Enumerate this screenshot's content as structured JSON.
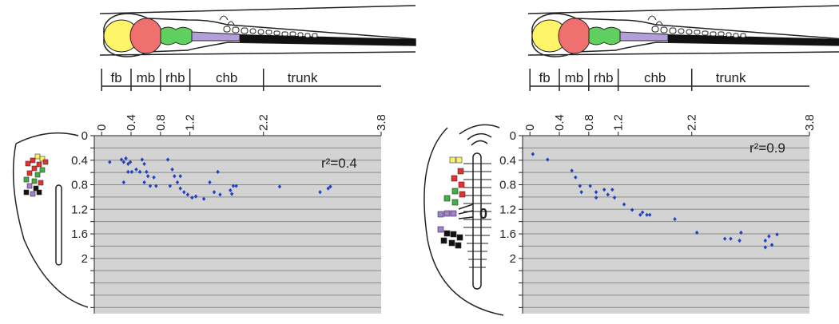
{
  "chart_data": [
    {
      "type": "scatter",
      "annotation": "r²=0.4",
      "color": "#1f3fbf",
      "regions": [
        "fb",
        "mb",
        "rhb",
        "chb",
        "trunk"
      ],
      "xlim": [
        -0.1,
        3.8
      ],
      "xticks": [
        0,
        0.4,
        0.8,
        1.2,
        2.2,
        3.8
      ],
      "ylim": [
        0,
        2.9
      ],
      "yticks": [
        0,
        0.4,
        0.8,
        1.2,
        1.6,
        2.0
      ],
      "minor_yticks": [
        0.2,
        0.6,
        1.0,
        1.4,
        1.8,
        2.2,
        2.4,
        2.6,
        2.8
      ],
      "y_inverted": true,
      "grid": true,
      "x": [
        0.11,
        0.27,
        0.3,
        0.33,
        0.36,
        0.39,
        0.3,
        0.36,
        0.41,
        0.47,
        0.52,
        0.55,
        0.58,
        0.61,
        0.58,
        0.66,
        0.71,
        0.74,
        0.63,
        0.9,
        0.96,
        0.99,
        1.03,
        0.93,
        1.07,
        1.12,
        1.17,
        1.23,
        1.28,
        1.07,
        1.39,
        1.47,
        1.53,
        1.58,
        1.61,
        1.75,
        1.79,
        1.83,
        1.77,
        2.42,
        2.97,
        3.08,
        3.11
      ],
      "values": [
        0.43,
        0.39,
        0.43,
        0.37,
        0.46,
        0.43,
        0.76,
        0.59,
        0.59,
        0.55,
        0.59,
        0.39,
        0.46,
        0.59,
        0.76,
        0.82,
        0.68,
        0.82,
        0.66,
        0.39,
        0.55,
        0.66,
        0.76,
        0.82,
        0.86,
        0.92,
        0.96,
        1.01,
        0.99,
        0.66,
        1.03,
        0.76,
        0.92,
        0.59,
        0.96,
        0.89,
        0.82,
        0.82,
        0.95,
        0.83,
        0.92,
        0.86,
        0.83
      ]
    },
    {
      "type": "scatter",
      "annotation": "r²=0.9",
      "color": "#1f3fbf",
      "inset_label": "0",
      "regions": [
        "fb",
        "mb",
        "rhb",
        "chb",
        "trunk"
      ],
      "xlim": [
        -0.1,
        3.8
      ],
      "xticks": [
        0,
        0.4,
        0.8,
        1.2,
        2.2,
        3.8
      ],
      "ylim": [
        0,
        2.9
      ],
      "yticks": [
        0,
        0.4,
        0.8,
        1.2,
        1.6,
        2.0
      ],
      "minor_yticks": [
        0.2,
        0.6,
        1.0,
        1.4,
        1.8,
        2.2,
        2.4,
        2.6,
        2.8
      ],
      "y_inverted": true,
      "grid": true,
      "x": [
        0.04,
        0.24,
        0.57,
        0.62,
        0.68,
        0.7,
        0.82,
        0.9,
        0.9,
        1.01,
        1.06,
        1.12,
        1.15,
        1.28,
        1.39,
        1.5,
        1.53,
        1.59,
        1.63,
        1.97,
        2.27,
        2.65,
        2.73,
        2.85,
        2.87,
        3.2,
        3.2,
        3.25,
        3.29,
        3.36
      ],
      "values": [
        0.3,
        0.39,
        0.57,
        0.68,
        0.82,
        0.92,
        0.82,
        0.92,
        1.01,
        0.88,
        0.96,
        0.88,
        1.01,
        1.12,
        1.21,
        1.29,
        1.25,
        1.29,
        1.29,
        1.36,
        1.58,
        1.68,
        1.68,
        1.71,
        1.58,
        1.71,
        1.82,
        1.64,
        1.78,
        1.61
      ]
    }
  ]
}
